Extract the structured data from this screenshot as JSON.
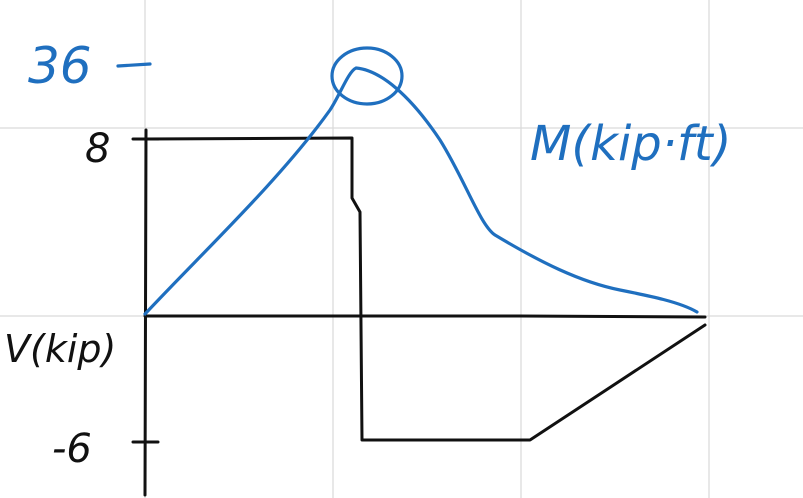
{
  "labels": {
    "shear_axis": "V(kip)",
    "moment_axis": "M(kip·ft)",
    "max_moment": "36",
    "shear_top_tick": "8",
    "shear_bottom_tick": "-6"
  },
  "colors": {
    "shear_ink": "#111111",
    "moment_ink": "#1f6fbf",
    "grid": "#d9d9d9"
  }
}
